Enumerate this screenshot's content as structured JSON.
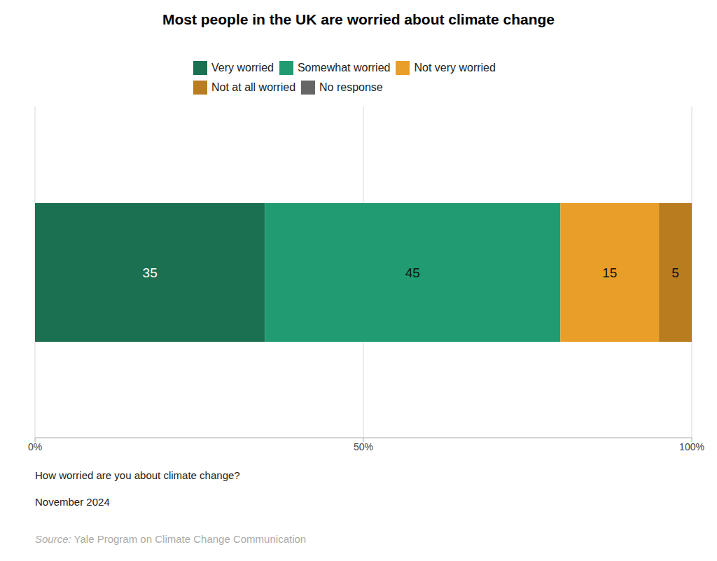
{
  "chart_data": {
    "type": "bar",
    "title": "Most people in the UK are worried about climate change",
    "orientation": "horizontal",
    "stacked": true,
    "data_labels": true,
    "grid": true,
    "legend": "top",
    "tick_labels": "x",
    "categories": [
      null
    ],
    "series": [
      {
        "name": "Very worried",
        "color": "#1a7050",
        "values": [
          35
        ]
      },
      {
        "name": "Somewhat worried",
        "color": "#219b72",
        "values": [
          45
        ]
      },
      {
        "name": "Not very worried",
        "color": "#e99e29",
        "values": [
          15
        ]
      },
      {
        "name": "Not at all worried",
        "color": "#b97d20",
        "values": [
          5
        ]
      },
      {
        "name": "No response",
        "color": "#666666",
        "values": [
          0
        ]
      }
    ],
    "xlim": [
      0,
      100
    ],
    "xticks": [
      {
        "value": 0,
        "label": "0%"
      },
      {
        "value": 50,
        "label": "50%"
      },
      {
        "value": 100,
        "label": "100%"
      }
    ],
    "question": "How worried are you about climate change?",
    "date": "November 2024",
    "source_label": "Source:",
    "source": "Yale Program on Climate Change Communication"
  }
}
